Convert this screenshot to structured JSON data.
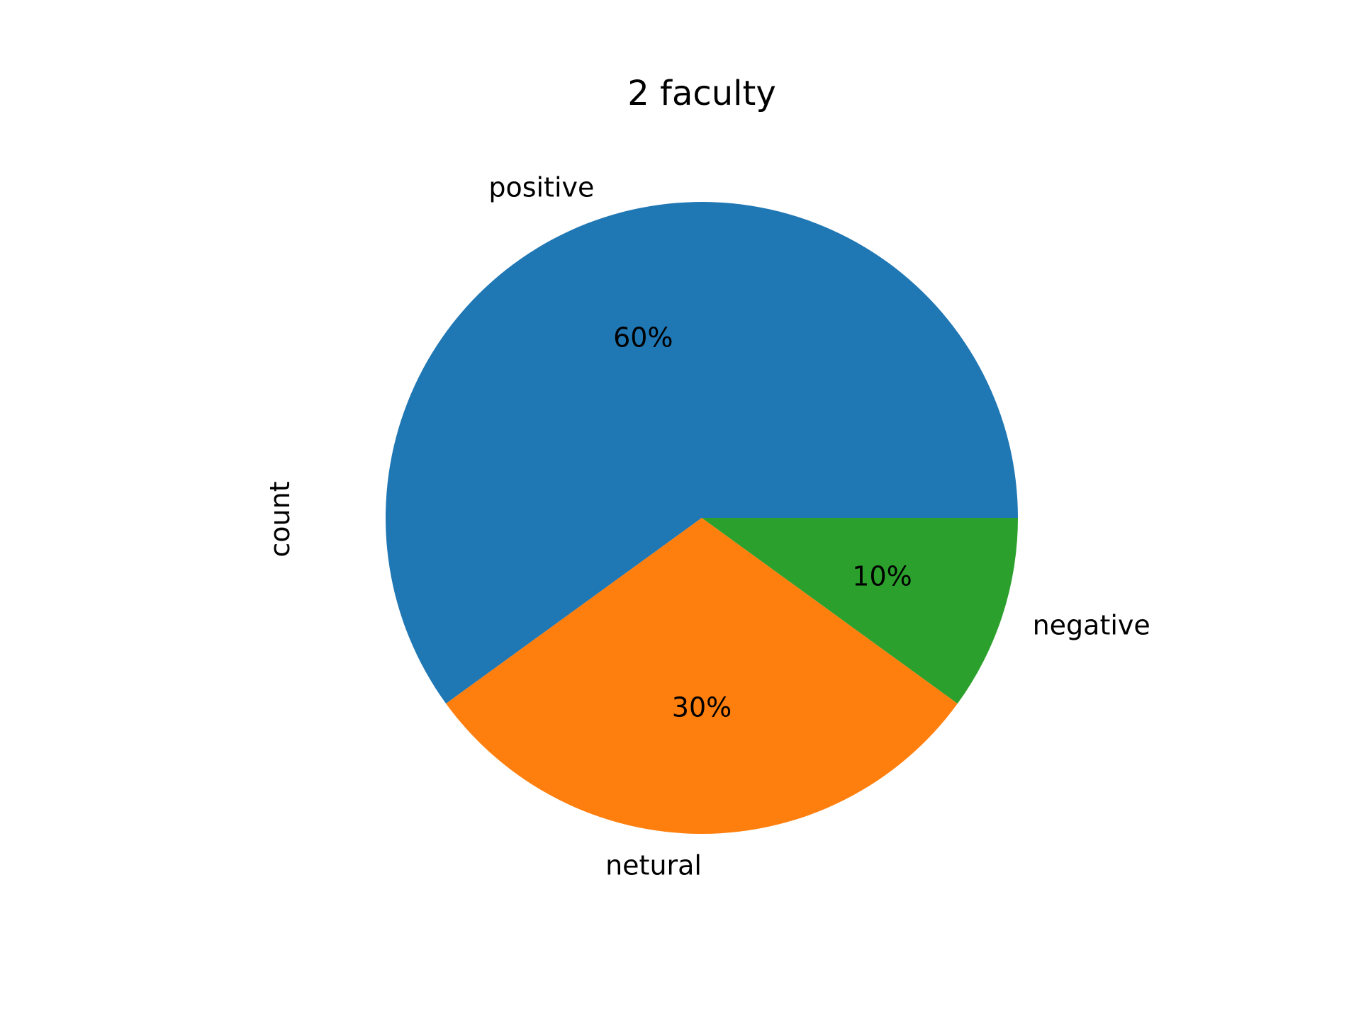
{
  "chart_data": {
    "type": "pie",
    "title": "2 faculty",
    "ylabel": "count",
    "categories": [
      "positive",
      "netural",
      "negative"
    ],
    "values": [
      60,
      30,
      10
    ],
    "percent_labels": [
      "60%",
      "30%",
      "10%"
    ],
    "colors": [
      "#1f77b4",
      "#ff7f0e",
      "#2ca02c"
    ],
    "start_angle_deg": 0,
    "direction": "counterclockwise"
  }
}
